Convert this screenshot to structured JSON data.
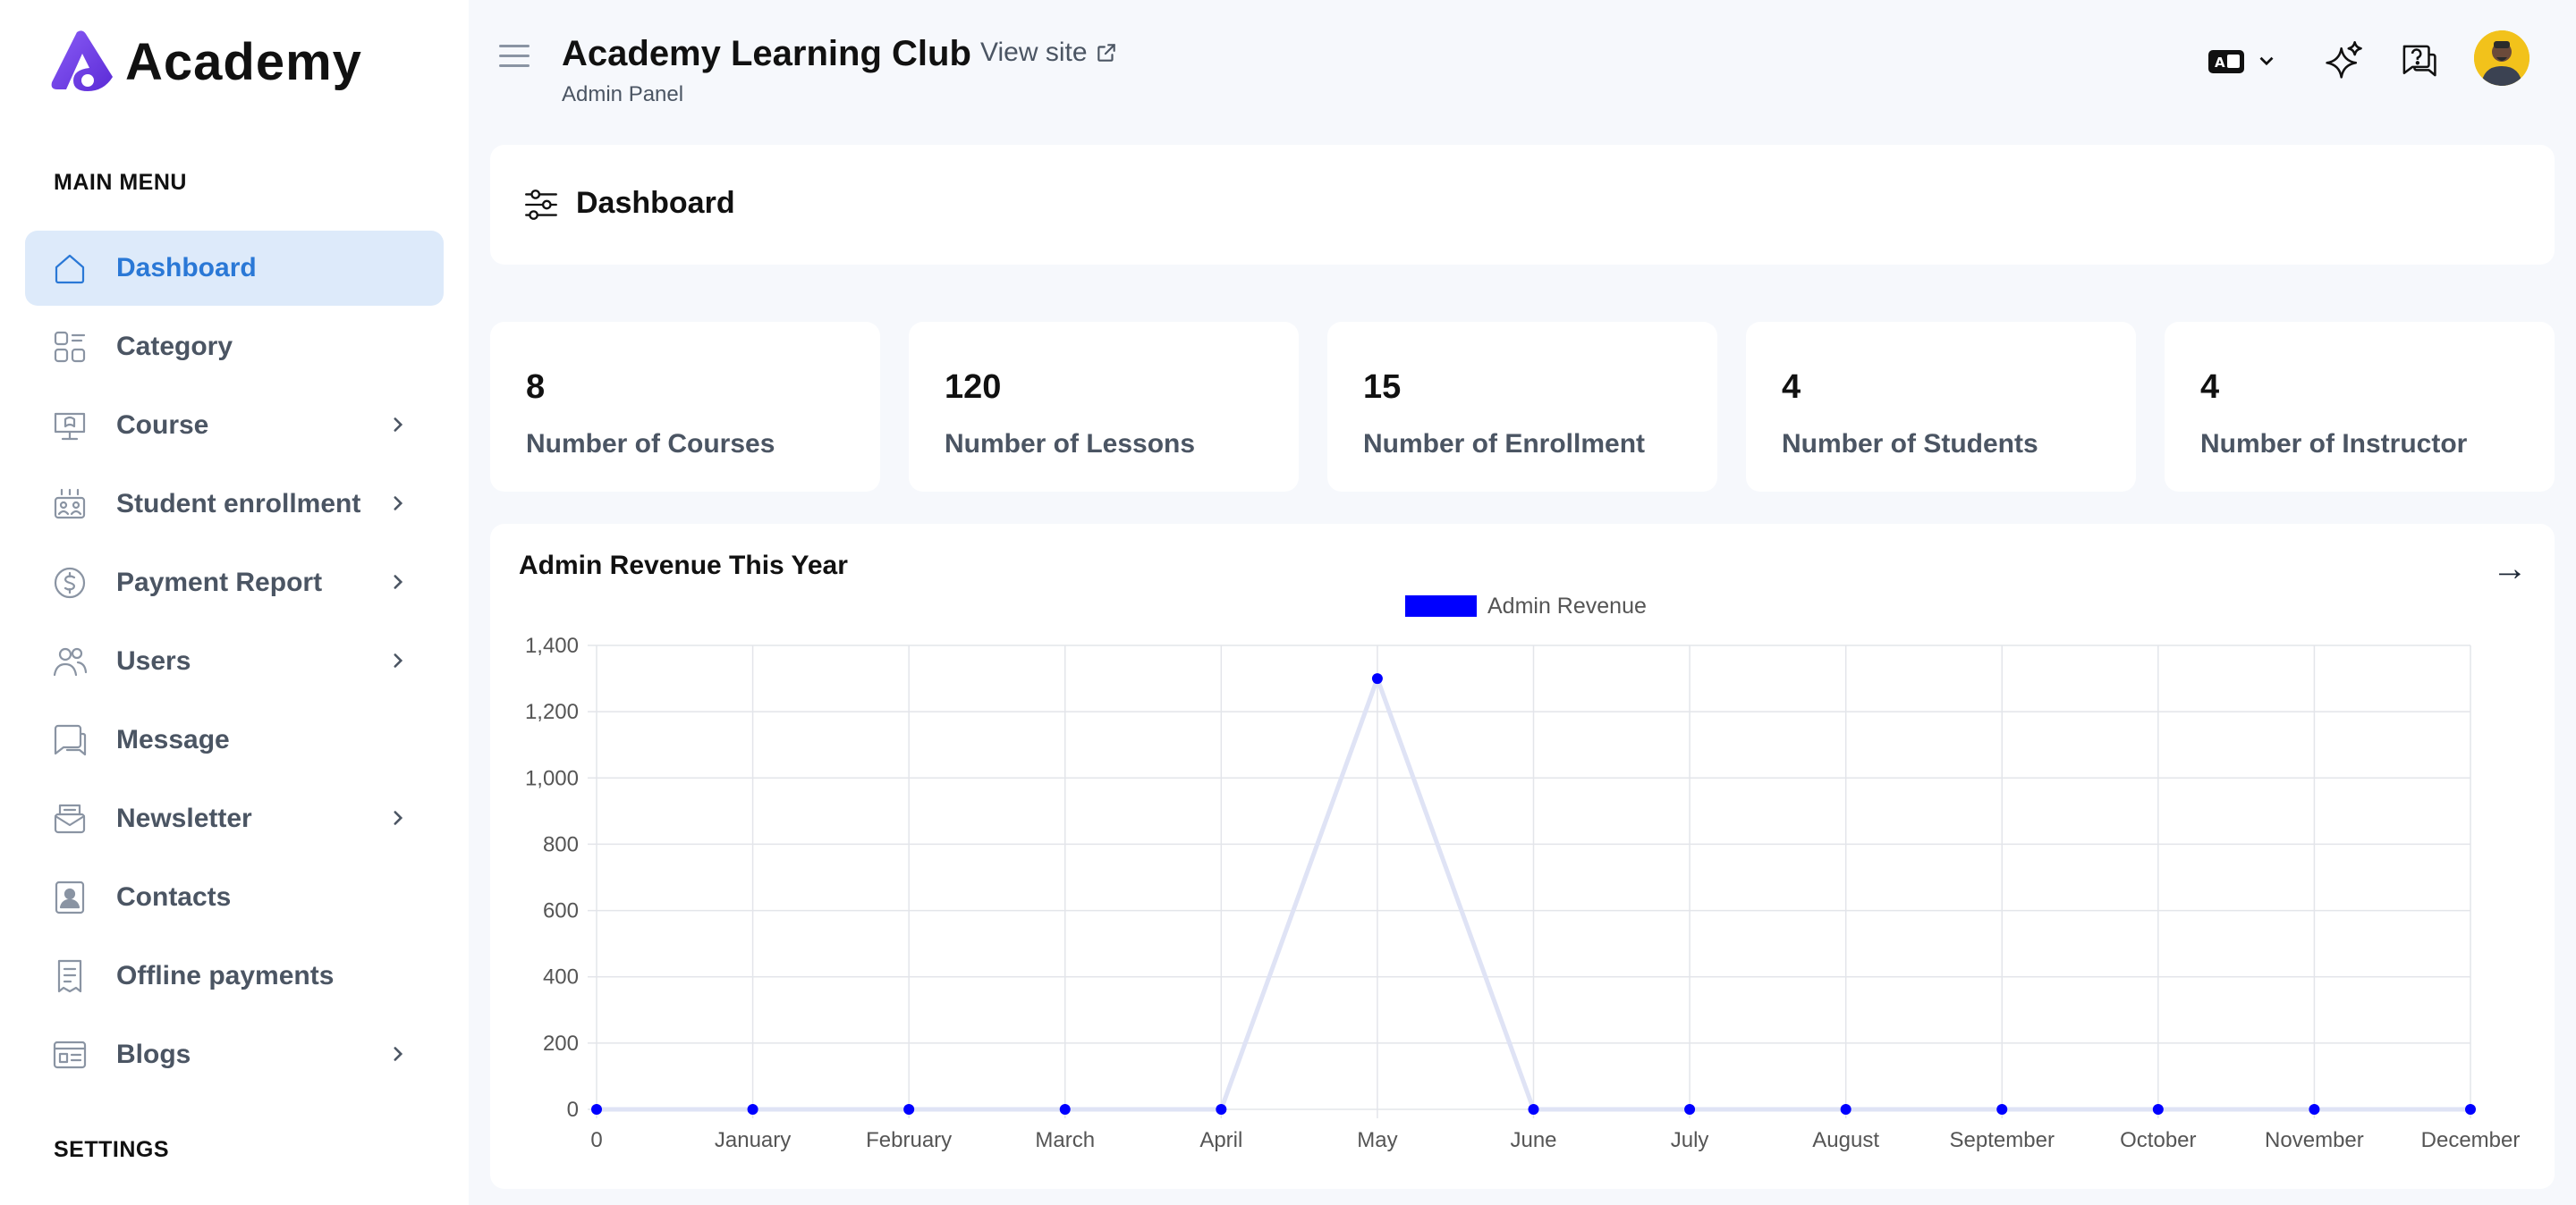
{
  "brand": {
    "name": "Academy"
  },
  "sidebar": {
    "main_heading": "MAIN MENU",
    "settings_heading": "SETTINGS",
    "items": [
      {
        "label": "Dashboard",
        "icon": "home-icon",
        "active": true,
        "has_children": false
      },
      {
        "label": "Category",
        "icon": "category-icon",
        "active": false,
        "has_children": false
      },
      {
        "label": "Course",
        "icon": "course-icon",
        "active": false,
        "has_children": true
      },
      {
        "label": "Student enrollment",
        "icon": "enrollment-icon",
        "active": false,
        "has_children": true
      },
      {
        "label": "Payment Report",
        "icon": "dollar-icon",
        "active": false,
        "has_children": true
      },
      {
        "label": "Users",
        "icon": "users-icon",
        "active": false,
        "has_children": true
      },
      {
        "label": "Message",
        "icon": "message-icon",
        "active": false,
        "has_children": false
      },
      {
        "label": "Newsletter",
        "icon": "newsletter-icon",
        "active": false,
        "has_children": true
      },
      {
        "label": "Contacts",
        "icon": "contacts-icon",
        "active": false,
        "has_children": false
      },
      {
        "label": "Offline payments",
        "icon": "receipt-icon",
        "active": false,
        "has_children": false
      },
      {
        "label": "Blogs",
        "icon": "blog-icon",
        "active": false,
        "has_children": true
      }
    ]
  },
  "header": {
    "title": "Academy Learning Club",
    "subtitle": "Admin Panel",
    "view_site": "View site"
  },
  "page": {
    "title": "Dashboard"
  },
  "stats": [
    {
      "value": "8",
      "label": "Number of Courses"
    },
    {
      "value": "120",
      "label": "Number of Lessons"
    },
    {
      "value": "15",
      "label": "Number of Enrollment"
    },
    {
      "value": "4",
      "label": "Number of Students"
    },
    {
      "value": "4",
      "label": "Number of Instructor"
    }
  ],
  "revenue": {
    "title": "Admin Revenue This Year",
    "arrow": "→"
  },
  "colors": {
    "accent": "#2a78d6",
    "active_bg": "#ddeafa",
    "series": "#0000ff",
    "line": "#dfe3f5",
    "avatar": "#f2c21b"
  },
  "chart_data": {
    "type": "line",
    "categories": [
      "0",
      "January",
      "February",
      "March",
      "April",
      "May",
      "June",
      "July",
      "August",
      "September",
      "October",
      "November",
      "December"
    ],
    "series": [
      {
        "name": "Admin Revenue",
        "values": [
          0,
          0,
          0,
          0,
          0,
          1300,
          0,
          0,
          0,
          0,
          0,
          0,
          0
        ]
      }
    ],
    "yticks": [
      "0",
      "200",
      "400",
      "600",
      "800",
      "1,000",
      "1,200",
      "1,400"
    ],
    "ylim": [
      0,
      1400
    ],
    "grid": true,
    "legend": "top-center"
  }
}
